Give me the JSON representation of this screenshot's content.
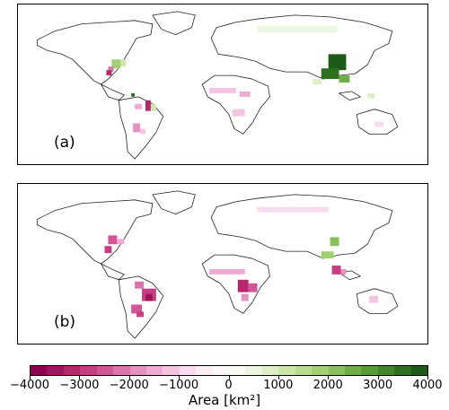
{
  "panels": [
    {
      "label": "(a)"
    },
    {
      "label": "(b)"
    }
  ],
  "colorbar": {
    "title": "Area [km²]",
    "ticks": [
      "−4000",
      "−3000",
      "−2000",
      "−1000",
      "0",
      "1000",
      "2000",
      "3000",
      "4000"
    ],
    "range": [
      -4000,
      4000
    ],
    "colors": [
      "#8e0152",
      "#a2135e",
      "#b7276b",
      "#c63e81",
      "#d25598",
      "#dc73ad",
      "#e590c1",
      "#eeaad2",
      "#f4c4e1",
      "#f8dbec",
      "#fbedf4",
      "#fdf7fa",
      "#f8fbf2",
      "#edf6e0",
      "#deefc6",
      "#cce7aa",
      "#b8dc8c",
      "#a1d072",
      "#88c05b",
      "#6fae44",
      "#579b33",
      "#418628",
      "#2c7020",
      "#1f5b18"
    ]
  }
}
